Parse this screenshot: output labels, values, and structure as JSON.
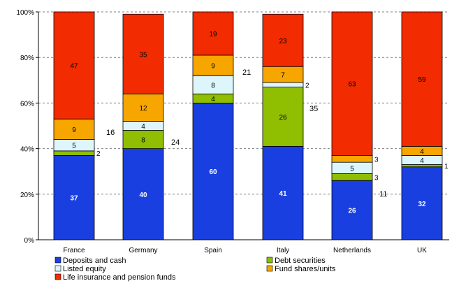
{
  "chart_data": {
    "type": "bar",
    "stacked": true,
    "percent": true,
    "categories": [
      "France",
      "Germany",
      "Spain",
      "Italy",
      "Netherlands",
      "UK"
    ],
    "ylim": [
      0,
      100
    ],
    "y_ticks": [
      "0%",
      "20%",
      "40%",
      "60%",
      "80%",
      "100%"
    ],
    "grid": "horizontal dashed",
    "legend_position": "bottom",
    "series": [
      {
        "name": "Deposits and cash",
        "color": "#1a3fe0",
        "label_color": "#ffffff",
        "values": [
          37,
          40,
          60,
          41,
          26,
          32
        ],
        "labels": [
          "37",
          "40",
          "60",
          "41",
          "26",
          "32"
        ]
      },
      {
        "name": "Debt securities",
        "color": "#8fbf00",
        "label_color": "#000000",
        "values": [
          2,
          8,
          4,
          26,
          3,
          1
        ],
        "labels": [
          "2",
          "8",
          "4",
          "26",
          "3",
          "1"
        ]
      },
      {
        "name": "Listed equity",
        "color": "#dcf6fc",
        "label_color": "#000000",
        "values": [
          5,
          4,
          8,
          2,
          5,
          4
        ],
        "labels": [
          "5",
          "4",
          "8",
          "2",
          "5",
          "4"
        ]
      },
      {
        "name": "Fund shares/units",
        "color": "#f7a600",
        "label_color": "#000000",
        "values": [
          9,
          12,
          9,
          7,
          3,
          4
        ],
        "labels": [
          "9",
          "12",
          "9",
          "7",
          "3",
          "4"
        ]
      },
      {
        "name": "Life insurance and pension funds",
        "color": "#f22c00",
        "label_color": "#000000",
        "values": [
          47,
          35,
          19,
          23,
          63,
          59
        ],
        "labels": [
          "47",
          "35",
          "19",
          "23",
          "63",
          "59"
        ]
      }
    ],
    "annotations": [
      "16",
      "24",
      "21",
      "35",
      "11"
    ]
  }
}
